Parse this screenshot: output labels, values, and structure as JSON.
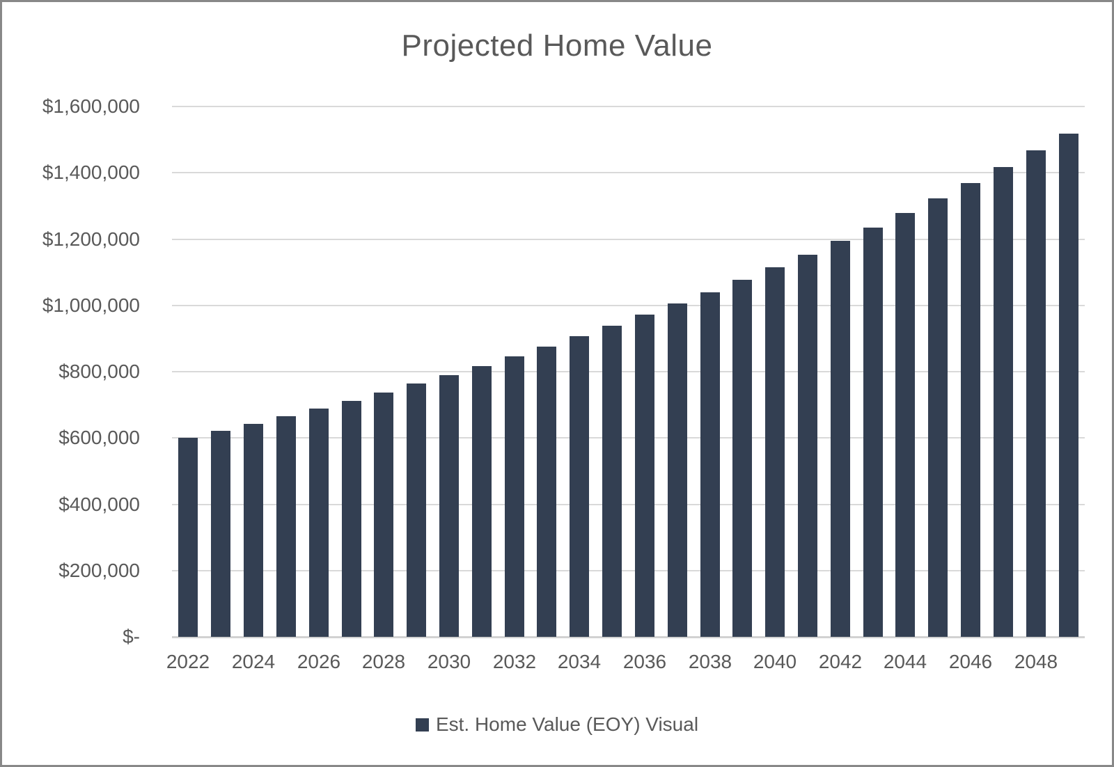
{
  "chart_data": {
    "type": "bar",
    "title": "Projected Home Value",
    "categories": [
      "2022",
      "2023",
      "2024",
      "2025",
      "2026",
      "2027",
      "2028",
      "2029",
      "2030",
      "2031",
      "2032",
      "2033",
      "2034",
      "2035",
      "2036",
      "2037",
      "2038",
      "2039",
      "2040",
      "2041",
      "2042",
      "2043",
      "2044",
      "2045",
      "2046",
      "2047",
      "2048",
      "2049"
    ],
    "series": [
      {
        "name": "Est. Home Value (EOY) Visual",
        "values": [
          600000,
          621000,
          642735,
          665231,
          688514,
          712612,
          737553,
          763368,
          790086,
          817739,
          846359,
          875982,
          906641,
          938374,
          971217,
          1005209,
          1040392,
          1076805,
          1114494,
          1153501,
          1193873,
          1235659,
          1278907,
          1323669,
          1369997,
          1417947,
          1467575,
          1518940
        ]
      }
    ],
    "x_tick_labels": [
      "2022",
      "2024",
      "2026",
      "2028",
      "2030",
      "2032",
      "2034",
      "2036",
      "2038",
      "2040",
      "2042",
      "2044",
      "2046",
      "2048"
    ],
    "y_tick_labels": [
      "$-",
      "$200,000",
      "$400,000",
      "$600,000",
      "$800,000",
      "$1,000,000",
      "$1,200,000",
      "$1,400,000",
      "$1,600,000"
    ],
    "ylim": [
      0,
      1600000
    ],
    "y_step": 200000,
    "grid": "horizontal gridlines on",
    "legend_position": "bottom",
    "bar_color": "#333F52",
    "text_color": "#595959",
    "gridline_color": "#D9D9D9",
    "axis_line_color": "#D2D2D2"
  }
}
